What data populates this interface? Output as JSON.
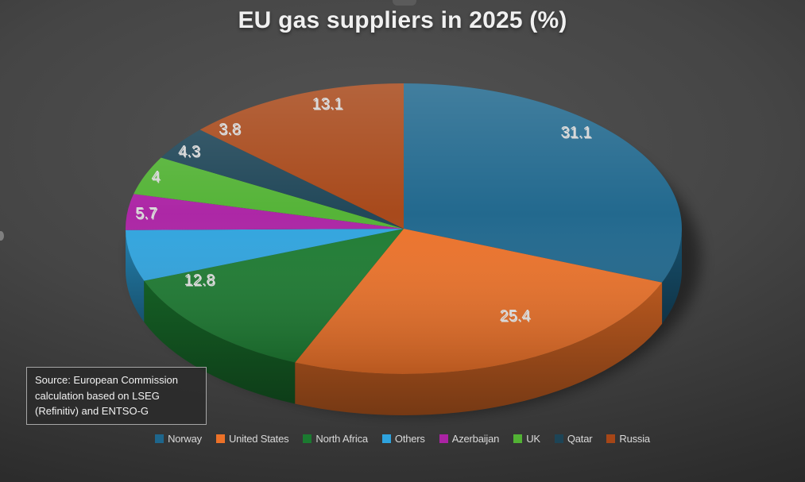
{
  "chart_data": {
    "type": "pie",
    "title": "EU gas suppliers in 2025 (%)",
    "unit": "%",
    "is_3d": true,
    "legend_position": "bottom",
    "slices": [
      {
        "label": "Norway",
        "value": 31.1,
        "value_label": "31.1",
        "color": "#1E668C"
      },
      {
        "label": "United States",
        "value": 25.4,
        "value_label": "25.4",
        "color": "#EC7128"
      },
      {
        "label": "North Africa",
        "value": 12.8,
        "value_label": "12.8",
        "color": "#1B7A30"
      },
      {
        "label": "Others",
        "value": 5.7,
        "value_label": "5.7",
        "color": "#2EA3DE"
      },
      {
        "label": "Azerbaijan",
        "value": 4,
        "value_label": "4",
        "color": "#AB23A4"
      },
      {
        "label": "UK",
        "value": 4.3,
        "value_label": "4.3",
        "color": "#52B234"
      },
      {
        "label": "Qatar",
        "value": 3.8,
        "value_label": "3.8",
        "color": "#1D4456"
      },
      {
        "label": "Russia",
        "value": 13.1,
        "value_label": "13.1",
        "color": "#A64617"
      }
    ]
  },
  "source_box": {
    "text": "Source: European Commission calculation based on LSEG (Refinitiv) and ENTSO-G"
  },
  "colors": {
    "background_center": "#535353",
    "background_edge": "#242424",
    "title_text": "#f0f0f0",
    "data_label": "#d9d9d9",
    "legend_text": "#d9d9d9",
    "source_text": "#f2f2f2",
    "source_border": "#a6a6a6"
  }
}
